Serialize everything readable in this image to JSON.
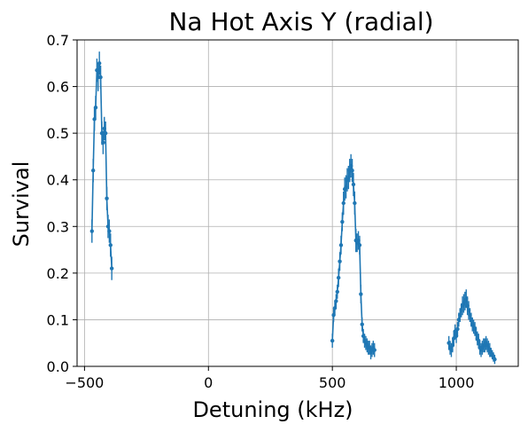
{
  "chart_data": {
    "type": "scatter",
    "title": "Na Hot Axis Y (radial)",
    "xlabel": "Detuning (kHz)",
    "ylabel": "Survival",
    "xlim": [
      -530,
      1250
    ],
    "ylim": [
      0,
      0.7
    ],
    "xticks": [
      -500,
      0,
      500,
      1000
    ],
    "xtick_labels": [
      "−500",
      "0",
      "500",
      "1000"
    ],
    "yticks": [
      0,
      0.1,
      0.2,
      0.3,
      0.4,
      0.5,
      0.6,
      0.7
    ],
    "ytick_labels": [
      "0.0",
      "0.1",
      "0.2",
      "0.3",
      "0.4",
      "0.5",
      "0.6",
      "0.7"
    ],
    "grid": true,
    "series": [
      {
        "color": "#1f77b4",
        "segments": [
          {
            "x": [
              -470,
              -465,
              -460,
              -455,
              -450,
              -445,
              -440,
              -435,
              -430,
              -425,
              -420,
              -415,
              -410,
              -405,
              -400,
              -395,
              -390
            ],
            "y": [
              0.29,
              0.42,
              0.53,
              0.555,
              0.635,
              0.62,
              0.65,
              0.62,
              0.5,
              0.48,
              0.51,
              0.5,
              0.36,
              0.3,
              0.29,
              0.26,
              0.21
            ],
            "err": [
              0.025,
              0.025,
              0.025,
              0.025,
              0.025,
              0.03,
              0.025,
              0.025,
              0.025,
              0.025,
              0.025,
              0.025,
              0.025,
              0.025,
              0.025,
              0.025,
              0.025
            ]
          },
          {
            "x": [
              500,
              505,
              510,
              515,
              520,
              525,
              530,
              535,
              540,
              545,
              550,
              555,
              560,
              565,
              570,
              575,
              580,
              585,
              590,
              595,
              600,
              605,
              610,
              615,
              620,
              625,
              630,
              635,
              640,
              645,
              650,
              655,
              660,
              665,
              670
            ],
            "y": [
              0.055,
              0.11,
              0.125,
              0.14,
              0.16,
              0.19,
              0.225,
              0.26,
              0.31,
              0.35,
              0.38,
              0.385,
              0.4,
              0.405,
              0.42,
              0.43,
              0.42,
              0.39,
              0.35,
              0.27,
              0.265,
              0.27,
              0.26,
              0.155,
              0.09,
              0.065,
              0.055,
              0.05,
              0.045,
              0.04,
              0.04,
              0.03,
              0.035,
              0.04,
              0.035
            ],
            "err": [
              0.015,
              0.015,
              0.015,
              0.015,
              0.015,
              0.02,
              0.02,
              0.02,
              0.02,
              0.025,
              0.025,
              0.025,
              0.025,
              0.025,
              0.025,
              0.025,
              0.025,
              0.025,
              0.025,
              0.025,
              0.02,
              0.02,
              0.02,
              0.02,
              0.015,
              0.015,
              0.015,
              0.015,
              0.015,
              0.015,
              0.015,
              0.015,
              0.015,
              0.015,
              0.015
            ]
          },
          {
            "x": [
              970,
              975,
              980,
              985,
              990,
              995,
              1000,
              1005,
              1010,
              1015,
              1020,
              1025,
              1030,
              1035,
              1040,
              1045,
              1050,
              1055,
              1060,
              1065,
              1070,
              1075,
              1080,
              1085,
              1090,
              1095,
              1100,
              1105,
              1110,
              1115,
              1120,
              1125,
              1130,
              1135,
              1140,
              1145,
              1150,
              1155
            ],
            "y": [
              0.05,
              0.04,
              0.035,
              0.045,
              0.06,
              0.075,
              0.065,
              0.08,
              0.1,
              0.11,
              0.12,
              0.13,
              0.135,
              0.14,
              0.145,
              0.13,
              0.12,
              0.11,
              0.1,
              0.09,
              0.085,
              0.08,
              0.07,
              0.06,
              0.055,
              0.04,
              0.035,
              0.04,
              0.045,
              0.045,
              0.05,
              0.045,
              0.04,
              0.035,
              0.03,
              0.025,
              0.02,
              0.015
            ],
            "err": [
              0.015,
              0.015,
              0.015,
              0.015,
              0.015,
              0.015,
              0.015,
              0.015,
              0.015,
              0.015,
              0.015,
              0.02,
              0.02,
              0.02,
              0.02,
              0.02,
              0.02,
              0.015,
              0.015,
              0.015,
              0.015,
              0.015,
              0.015,
              0.015,
              0.015,
              0.015,
              0.015,
              0.015,
              0.015,
              0.015,
              0.015,
              0.015,
              0.015,
              0.015,
              0.01,
              0.01,
              0.01,
              0.01
            ]
          }
        ]
      }
    ]
  }
}
